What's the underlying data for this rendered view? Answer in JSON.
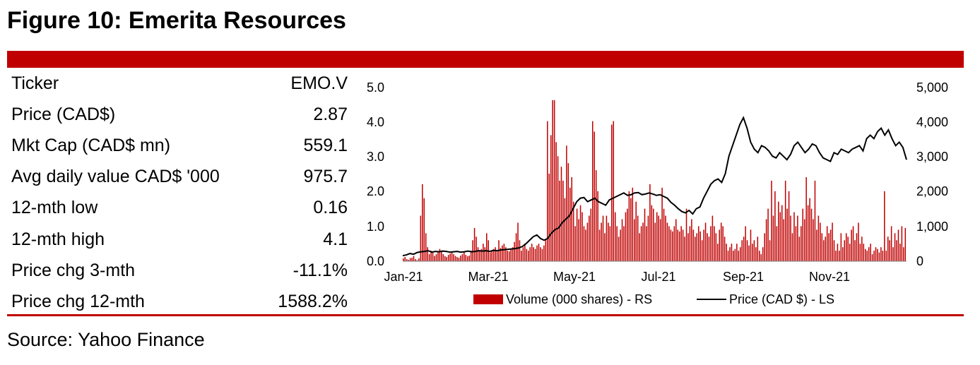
{
  "title": "Figure 10: Emerita Resources",
  "source": "Source: Yahoo Finance",
  "accent_color": "#c00000",
  "table": {
    "rows": [
      {
        "label": "Ticker",
        "value": "EMO.V"
      },
      {
        "label": "Price (CAD$)",
        "value": "2.87"
      },
      {
        "label": "Mkt Cap (CAD$ mn)",
        "value": "559.1"
      },
      {
        "label": "Avg daily value CAD$ '000",
        "value": "975.7"
      },
      {
        "label": "12-mth low",
        "value": "0.16"
      },
      {
        "label": "12-mth high",
        "value": "4.1"
      },
      {
        "label": "Price chg 3-mth",
        "value": "-11.1%"
      },
      {
        "label": "Price chg 12-mth",
        "value": "1588.2%"
      }
    ]
  },
  "chart_data": {
    "type": "bar+line",
    "x_tick_labels": [
      "Jan-21",
      "Mar-21",
      "May-21",
      "Jul-21",
      "Sep-21",
      "Nov-21"
    ],
    "y_left": {
      "min": 0,
      "max": 5,
      "ticks": [
        "0.0",
        "1.0",
        "2.0",
        "3.0",
        "4.0",
        "5.0"
      ]
    },
    "y_right": {
      "min": 0,
      "max": 5000,
      "ticks": [
        "0",
        "1,000",
        "2,000",
        "3,000",
        "4,000",
        "5,000"
      ]
    },
    "legend": {
      "volume": "Volume (000 shares) - RS",
      "price": "Price (CAD $) - LS"
    },
    "volume": [
      80,
      120,
      60,
      40,
      90,
      100,
      150,
      60,
      30,
      80,
      1300,
      2200,
      1800,
      800,
      400,
      200,
      300,
      250,
      150,
      200,
      280,
      350,
      300,
      200,
      150,
      120,
      180,
      220,
      250,
      200,
      150,
      120,
      100,
      160,
      200,
      250,
      180,
      140,
      160,
      300,
      600,
      950,
      700,
      400,
      300,
      350,
      500,
      400,
      800,
      600,
      250,
      300,
      350,
      400,
      300,
      600,
      380,
      450,
      500,
      400,
      300,
      280,
      350,
      400,
      550,
      800,
      1100,
      600,
      300,
      400,
      500,
      350,
      300,
      400,
      500,
      400,
      350,
      450,
      500,
      400,
      350,
      450,
      600,
      4000,
      2500,
      3600,
      4600,
      4600,
      3400,
      3000,
      2300,
      2700,
      2300,
      1800,
      3300,
      2800,
      2100,
      2400,
      1700,
      1000,
      1500,
      1200,
      1600,
      1400,
      1000,
      900,
      1100,
      1300,
      1500,
      4000,
      3700,
      2600,
      2000,
      900,
      1100,
      1300,
      800,
      1300,
      1100,
      1000,
      3900,
      4000,
      1400,
      1000,
      700,
      900,
      1200,
      1000,
      1400,
      1500,
      2000,
      1800,
      2100,
      1200,
      1700,
      1300,
      800,
      1000,
      1100,
      1500,
      1000,
      1300,
      2200,
      1600,
      1500,
      1100,
      1400,
      1300,
      1200,
      2100,
      1500,
      1300,
      1100,
      1000,
      900,
      850,
      1000,
      1200,
      900,
      850,
      1000,
      900,
      700,
      1500,
      800,
      1000,
      1200,
      900,
      700,
      800,
      1000,
      850,
      600,
      900,
      1100,
      800,
      700,
      1000,
      1300,
      1000,
      800,
      500,
      900,
      1100,
      1000,
      700,
      500,
      300,
      400,
      500,
      300,
      350,
      500,
      300,
      400,
      600,
      700,
      1000,
      600,
      450,
      900,
      500,
      600,
      400,
      700,
      300,
      200,
      400,
      800,
      1200,
      1500,
      600,
      2300,
      1300,
      2000,
      1000,
      1700,
      1400,
      1600,
      1200,
      2300,
      1500,
      2000,
      1300,
      800,
      1400,
      1000,
      1300,
      700,
      1000,
      1500,
      1200,
      2400,
      1600,
      1800,
      1500,
      1200,
      2300,
      900,
      1300,
      1100,
      800,
      600,
      700,
      1000,
      800,
      900,
      1100,
      600,
      300,
      500,
      300,
      800,
      400,
      600,
      800,
      700,
      500,
      900,
      1000,
      600,
      800,
      1100,
      500,
      700,
      500,
      350,
      300,
      400,
      500,
      200,
      300,
      400,
      350,
      250,
      400,
      300,
      2000,
      300,
      700,
      600,
      1000,
      400,
      800,
      600,
      900,
      500,
      1000,
      400,
      950
    ],
    "price": [
      0.16,
      0.18,
      0.22,
      0.2,
      0.25,
      0.27,
      0.28,
      0.3,
      0.26,
      0.28,
      0.27,
      0.29,
      0.28,
      0.26,
      0.27,
      0.28,
      0.26,
      0.27,
      0.29,
      0.27,
      0.28,
      0.3,
      0.29,
      0.3,
      0.28,
      0.31,
      0.3,
      0.32,
      0.33,
      0.34,
      0.35,
      0.36,
      0.38,
      0.42,
      0.5,
      0.6,
      0.7,
      0.75,
      0.65,
      0.6,
      0.65,
      0.8,
      0.9,
      0.95,
      1.1,
      1.2,
      1.3,
      1.5,
      1.7,
      1.8,
      1.82,
      1.7,
      1.75,
      1.8,
      1.7,
      1.65,
      1.6,
      1.75,
      1.8,
      1.85,
      1.9,
      1.95,
      1.88,
      1.9,
      1.95,
      1.96,
      1.9,
      1.92,
      1.95,
      1.92,
      1.88,
      1.9,
      1.85,
      1.8,
      1.68,
      1.6,
      1.5,
      1.42,
      1.38,
      1.45,
      1.35,
      1.5,
      1.55,
      1.8,
      2.0,
      2.2,
      2.3,
      2.35,
      2.25,
      2.5,
      3.0,
      3.3,
      3.6,
      3.9,
      4.1,
      3.8,
      3.4,
      3.2,
      3.1,
      3.3,
      3.25,
      3.15,
      3.0,
      2.95,
      3.1,
      3.0,
      2.9,
      3.05,
      3.3,
      3.4,
      3.25,
      3.1,
      3.2,
      3.35,
      3.3,
      3.1,
      2.95,
      2.9,
      2.85,
      3.1,
      3.05,
      3.2,
      3.15,
      3.1,
      3.2,
      3.25,
      3.3,
      3.15,
      3.5,
      3.6,
      3.5,
      3.7,
      3.8,
      3.6,
      3.75,
      3.5,
      3.3,
      3.4,
      3.25,
      2.9
    ]
  }
}
